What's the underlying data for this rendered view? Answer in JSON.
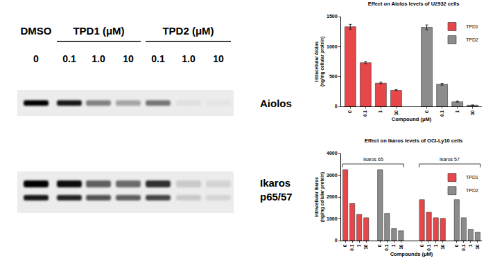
{
  "blots": {
    "header": [
      {
        "label": "DMSO",
        "lanes": [
          "0"
        ]
      },
      {
        "label": "TPD1 (μM)",
        "lanes": [
          "0.1",
          "1.0",
          "10"
        ]
      },
      {
        "label": "TPD2 (μM)",
        "lanes": [
          "0.1",
          "1.0",
          "10"
        ]
      }
    ],
    "panels": [
      {
        "label": [
          "Aiolos"
        ],
        "bands": [
          [
            1.0,
            0.9,
            0.45,
            0.3,
            0.5,
            0.05,
            0.03
          ]
        ]
      },
      {
        "label": [
          "Ikaros",
          "p65/57"
        ],
        "bands": [
          [
            1.0,
            0.95,
            0.6,
            0.55,
            0.8,
            0.15,
            0.1
          ],
          [
            0.9,
            0.85,
            0.65,
            0.6,
            0.7,
            0.15,
            0.1
          ]
        ]
      }
    ]
  },
  "chart_data": [
    {
      "type": "bar",
      "title": "Effect on Aiolos levels of U2932 cells",
      "xlabel": "Compound (μM)",
      "ylabel": [
        "Intracellular Aiolos",
        "(ng/mg cellular protein)"
      ],
      "categories": [
        "0",
        "0.1",
        "1",
        "10"
      ],
      "groups": [
        {
          "series": [
            {
              "name": "TPD1",
              "color": "#e8474a",
              "values": [
                1330,
                730,
                390,
                270
              ],
              "errors": [
                40,
                20,
                15,
                10
              ]
            },
            {
              "name": "TPD2",
              "color": "#8c8c8c",
              "values": [
                1320,
                370,
                80,
                20
              ],
              "errors": [
                40,
                15,
                10,
                5
              ]
            }
          ]
        }
      ],
      "ylim": [
        0,
        1500
      ],
      "yticks": [
        0,
        500,
        1000,
        1500
      ],
      "grid": false,
      "legend": "upper right"
    },
    {
      "type": "bar",
      "title": "Effect on Ikaros levels of OCI-Ly10 cells",
      "xlabel": "Compounds (μM)",
      "ylabel": [
        "Intracellular Ikaros",
        "(ng/mg cellular protein)"
      ],
      "categories": [
        "0",
        "0.1",
        "1",
        "10"
      ],
      "groups": [
        {
          "label": "Ikaros 65",
          "series": [
            {
              "name": "TPD1",
              "color": "#e8474a",
              "values": [
                3250,
                1700,
                1200,
                1050
              ]
            },
            {
              "name": "TPD2",
              "color": "#8c8c8c",
              "values": [
                3250,
                1250,
                550,
                450
              ]
            }
          ]
        },
        {
          "label": "Ikaros 57",
          "series": [
            {
              "name": "TPD1",
              "color": "#e8474a",
              "values": [
                1880,
                1300,
                1050,
                1020
              ]
            },
            {
              "name": "TPD2",
              "color": "#8c8c8c",
              "values": [
                1880,
                1050,
                520,
                380
              ]
            }
          ]
        }
      ],
      "ylim": [
        0,
        4000
      ],
      "yticks": [
        0,
        1000,
        2000,
        3000,
        4000
      ],
      "grid": false,
      "legend": "upper right"
    }
  ]
}
